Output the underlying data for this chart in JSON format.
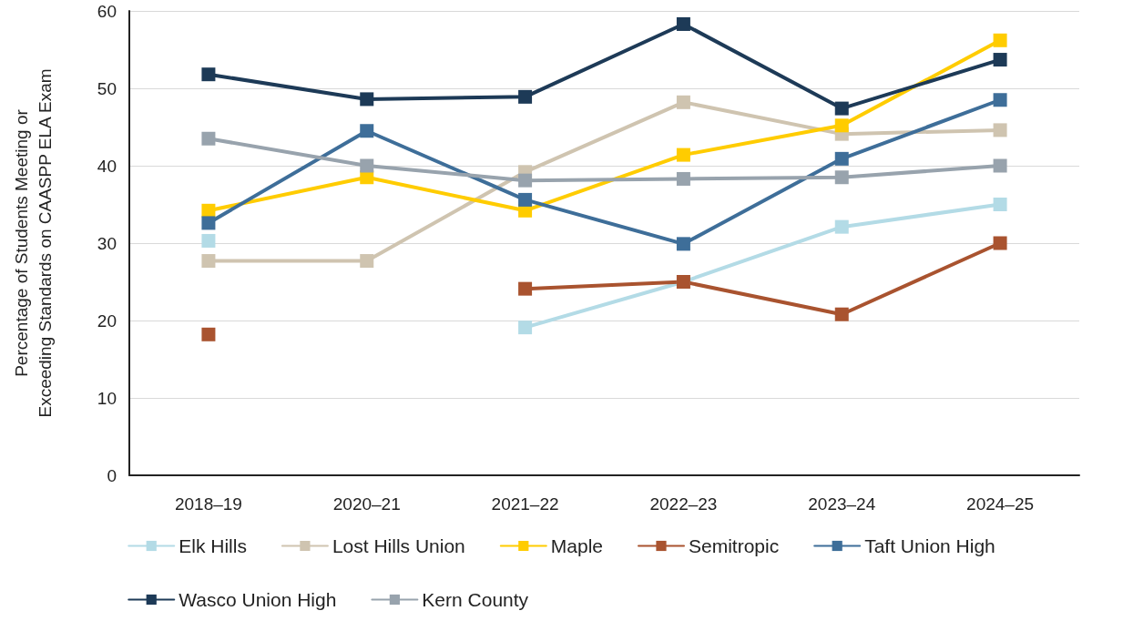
{
  "chart_data": {
    "type": "line",
    "ylabel": "Percentage of Students Meeting or\nExceeding Standards on CAASPP ELA Exam",
    "categories": [
      "2018–19",
      "2020–21",
      "2021–22",
      "2022–23",
      "2023–24",
      "2024–25"
    ],
    "series": [
      {
        "name": "Elk Hills",
        "color": "#b3dbe6",
        "values": [
          30.3,
          null,
          19.1,
          25.0,
          32.1,
          35.0
        ]
      },
      {
        "name": "Lost Hills Union",
        "color": "#cfc4b0",
        "values": [
          27.7,
          27.7,
          39.2,
          48.2,
          44.1,
          44.6
        ]
      },
      {
        "name": "Maple",
        "color": "#ffcc00",
        "values": [
          34.2,
          38.5,
          34.2,
          41.4,
          45.2,
          56.2
        ]
      },
      {
        "name": "Semitropic",
        "color": "#a9532f",
        "values": [
          18.2,
          null,
          24.1,
          25.0,
          20.8,
          30.0
        ]
      },
      {
        "name": "Taft Union High",
        "color": "#3e6e99",
        "values": [
          32.6,
          44.5,
          35.6,
          29.9,
          40.9,
          48.5
        ]
      },
      {
        "name": "Wasco Union High",
        "color": "#1d3a57",
        "values": [
          51.8,
          48.6,
          48.9,
          58.3,
          47.4,
          53.7
        ]
      },
      {
        "name": "Kern County",
        "color": "#98a3ad",
        "values": [
          43.5,
          40.0,
          38.1,
          38.3,
          38.5,
          40.0
        ]
      }
    ],
    "ylim": [
      0,
      60
    ],
    "yticks": [
      0,
      10,
      20,
      30,
      40,
      50,
      60
    ],
    "grid": "y",
    "legend": "bottom",
    "marker": "square",
    "line_style": "solid"
  }
}
